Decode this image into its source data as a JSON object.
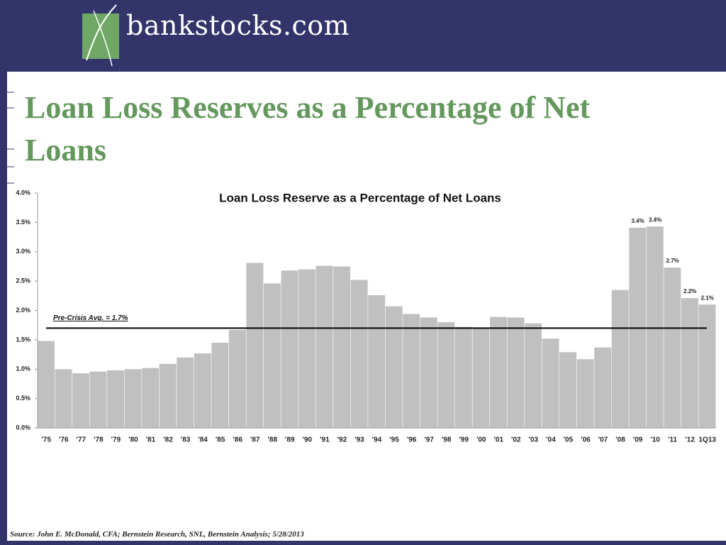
{
  "header": {
    "logo": "bankstocks.com"
  },
  "slide_title": "Loan Loss Reserves as a Percentage of Net Loans",
  "chart_data": {
    "type": "bar",
    "title": "Loan Loss Reserve as a Percentage of Net Loans",
    "categories": [
      "'75",
      "'76",
      "'77",
      "'78",
      "'79",
      "'80",
      "'81",
      "'82",
      "'83",
      "'84",
      "'85",
      "'86",
      "'87",
      "'88",
      "'89",
      "'90",
      "'91",
      "'92",
      "'93",
      "'94",
      "'95",
      "'96",
      "'97",
      "'98",
      "'99",
      "'00",
      "'01",
      "'02",
      "'03",
      "'04",
      "'05",
      "'06",
      "'07",
      "'08",
      "'09",
      "'10",
      "'11",
      "'12",
      "1Q13"
    ],
    "values": [
      1.48,
      1.0,
      0.93,
      0.96,
      0.98,
      1.0,
      1.02,
      1.09,
      1.2,
      1.27,
      1.45,
      1.67,
      2.81,
      2.46,
      2.68,
      2.7,
      2.76,
      2.75,
      2.52,
      2.26,
      2.07,
      1.94,
      1.88,
      1.8,
      1.72,
      1.7,
      1.89,
      1.88,
      1.78,
      1.52,
      1.29,
      1.17,
      1.37,
      2.35,
      3.41,
      3.43,
      2.73,
      2.21,
      2.1
    ],
    "value_labels": [
      null,
      null,
      null,
      null,
      null,
      null,
      null,
      null,
      null,
      null,
      null,
      null,
      null,
      null,
      null,
      null,
      null,
      null,
      null,
      null,
      null,
      null,
      null,
      null,
      null,
      null,
      null,
      null,
      null,
      null,
      null,
      null,
      null,
      null,
      "3.4%",
      "3.4%",
      "2.7%",
      "2.2%",
      "2.1%"
    ],
    "color": "#c0c0c0",
    "ylim": [
      0,
      4
    ],
    "yticks": [
      {
        "value": 0,
        "label": "0.0%"
      },
      {
        "value": 0.5,
        "label": "0.5%"
      },
      {
        "value": 1,
        "label": "1.0%"
      },
      {
        "value": 1.5,
        "label": "1.5%"
      },
      {
        "value": 2,
        "label": "2.0%"
      },
      {
        "value": 2.5,
        "label": "2.5%"
      },
      {
        "value": 3,
        "label": "3.0%"
      },
      {
        "value": 3.5,
        "label": "3.5%"
      },
      {
        "value": 4,
        "label": "4.0%"
      }
    ],
    "reference_line": {
      "value": 1.7,
      "label": "Pre-Crisis Avg. = 1.7%",
      "color": "#000000"
    }
  },
  "source": "Source: John E. McDonald, CFA;  Bernstein Research, SNL, Bernstein Analysis; 5/28/2013"
}
